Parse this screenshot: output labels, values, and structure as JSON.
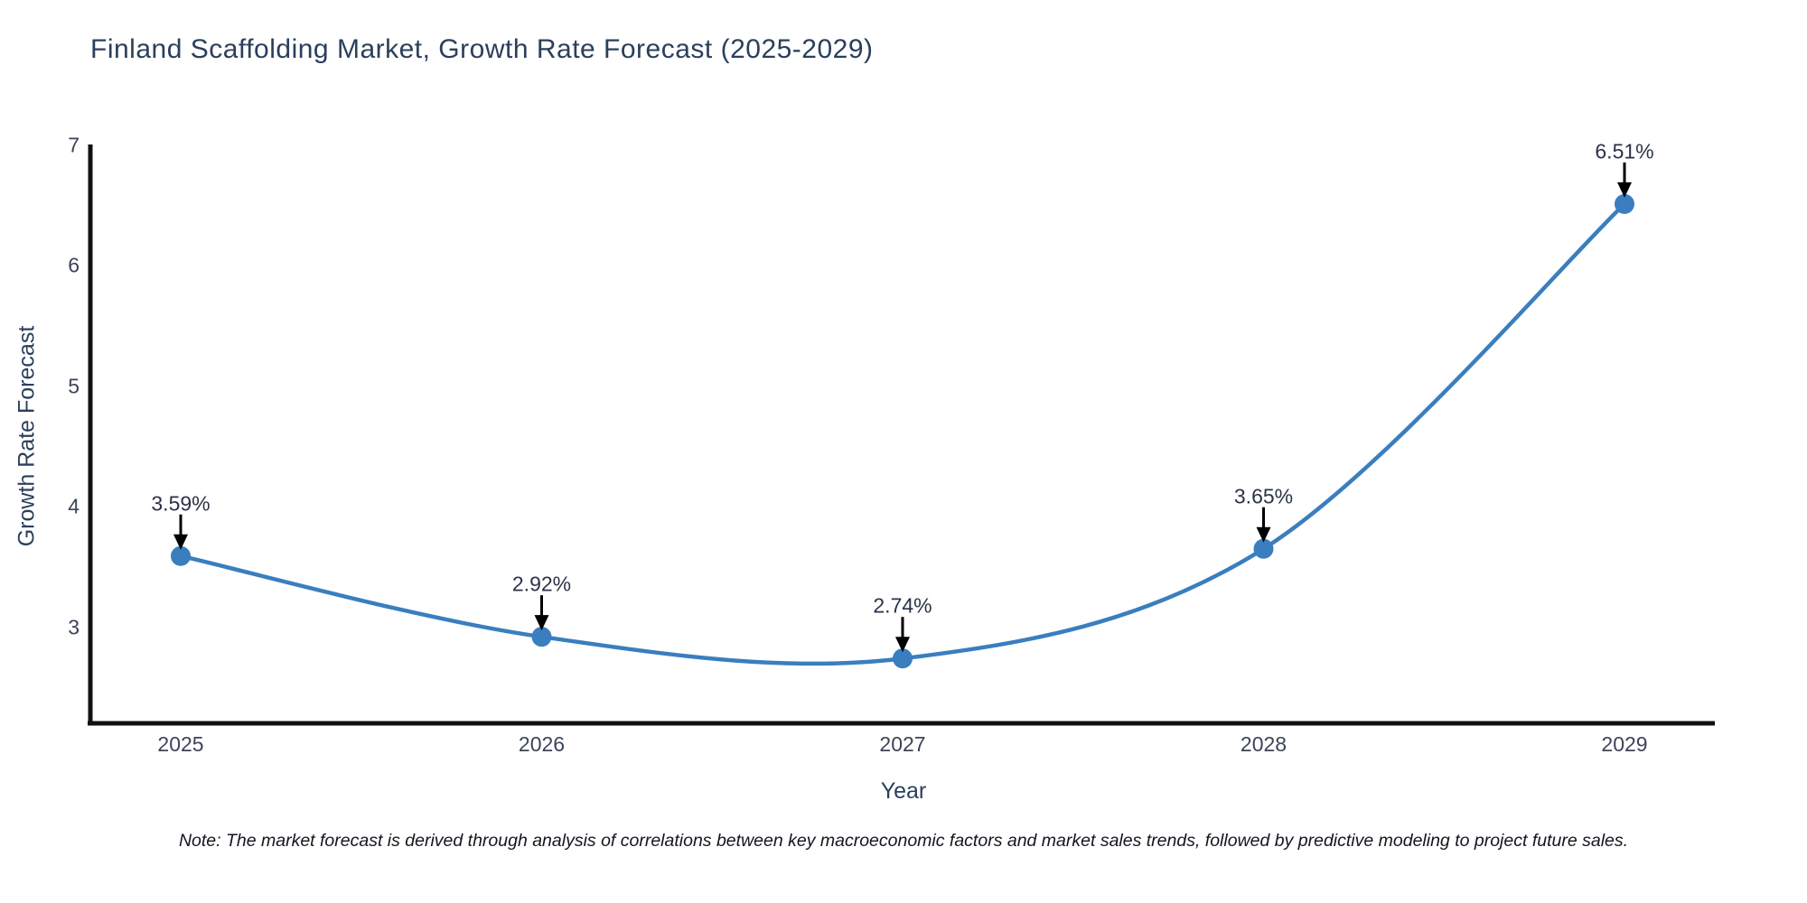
{
  "title": "Finland Scaffolding Market, Growth Rate Forecast (2025-2029)",
  "note": "Note: The market forecast is derived through analysis of correlations between key macroeconomic factors and market sales trends, followed by predictive modeling to project future sales.",
  "chart_data": {
    "type": "line",
    "title": "Finland Scaffolding Market, Growth Rate Forecast (2025-2029)",
    "x": [
      2025,
      2026,
      2027,
      2028,
      2029
    ],
    "values": [
      3.59,
      2.92,
      2.74,
      3.65,
      6.51
    ],
    "point_labels": [
      "3.59%",
      "2.92%",
      "2.74%",
      "3.65%",
      "6.51%"
    ],
    "xlabel": "Year",
    "ylabel": "Growth Rate Forecast",
    "yticks": [
      3,
      4,
      5,
      6,
      7
    ],
    "ylim": [
      2.2,
      7
    ],
    "xlim": [
      2024.75,
      2029.25
    ],
    "line_shape": "spline",
    "grid": false,
    "legend_position": "none",
    "colors": {
      "line": "#3a7ebf",
      "marker": "#3a7ebf",
      "axis": "#111111",
      "annotation_arrow": "#000000",
      "title_text": "#2b3f5c",
      "tick_text": "#3b4458"
    }
  }
}
